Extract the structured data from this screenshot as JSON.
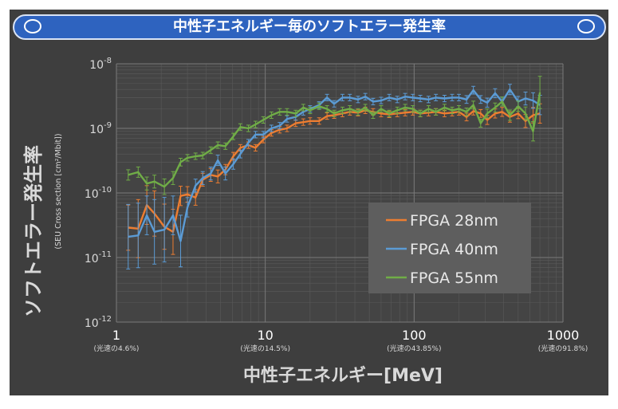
{
  "slide": {
    "banner_title": "中性子エネルギー毎のソフトエラー発生率",
    "banner_color": "#2e63bf",
    "background_color": "#3e3e3e"
  },
  "chart_data": {
    "type": "line",
    "title": "",
    "ylabel_main": "ソフトエラー発生率",
    "ylabel_sub": "(SEU Cross section [cm²/Mbit])",
    "xlabel": "中性子エネルギー[MeV]",
    "x_scale": "log",
    "y_scale": "log",
    "xlim": [
      1,
      1000
    ],
    "ylim": [
      1e-12,
      1e-08
    ],
    "grid": true,
    "legend_position": "lower-right",
    "x_ticks": [
      {
        "value": 1,
        "label": "1",
        "note": "(光速の4.6%)"
      },
      {
        "value": 10,
        "label": "10",
        "note": "(光速の14.5%)"
      },
      {
        "value": 100,
        "label": "100",
        "note": "(光速の43.85%)"
      },
      {
        "value": 1000,
        "label": "1000",
        "note": "(光速の91.8%)"
      }
    ],
    "y_ticks": [
      {
        "value": 1e-08,
        "base": "10",
        "exp": "-8"
      },
      {
        "value": 1e-09,
        "base": "10",
        "exp": "-9"
      },
      {
        "value": 1e-10,
        "base": "10",
        "exp": "-10"
      },
      {
        "value": 1e-11,
        "base": "10",
        "exp": "-11"
      },
      {
        "value": 1e-12,
        "base": "10",
        "exp": "-12"
      }
    ],
    "series": [
      {
        "name": "FPGA 28nm",
        "color": "#ed7d31",
        "x": [
          1.2,
          1.4,
          1.6,
          1.8,
          2.1,
          2.4,
          2.7,
          3.0,
          3.4,
          3.8,
          4.3,
          4.8,
          5.4,
          6.1,
          6.8,
          7.7,
          8.6,
          9.7,
          11,
          12.5,
          14,
          16,
          18,
          20,
          23,
          26,
          29,
          33,
          37,
          42,
          47,
          53,
          60,
          68,
          77,
          87,
          98,
          110,
          125,
          140,
          160,
          180,
          200,
          225,
          250,
          280,
          310,
          350,
          390,
          440,
          500,
          560,
          630,
          700
        ],
        "y": [
          2.9e-11,
          2.8e-11,
          6.5e-11,
          4.8e-11,
          3e-11,
          2.5e-11,
          9e-11,
          9.5e-11,
          8.5e-11,
          1.6e-10,
          1.9e-10,
          1.8e-10,
          2.3e-10,
          3.7e-10,
          5e-10,
          5.5e-10,
          5e-10,
          6.7e-10,
          8.5e-10,
          9.5e-10,
          1e-09,
          1.2e-09,
          1.25e-09,
          1.3e-09,
          1.3e-09,
          1.55e-09,
          1.6e-09,
          1.7e-09,
          1.8e-09,
          1.75e-09,
          1.9e-09,
          1.8e-09,
          1.7e-09,
          1.65e-09,
          1.7e-09,
          1.75e-09,
          1.8e-09,
          1.7e-09,
          1.75e-09,
          1.8e-09,
          1.7e-09,
          1.75e-09,
          1.8e-09,
          1.5e-09,
          1.85e-09,
          1.7e-09,
          1.35e-09,
          1.7e-09,
          1.8e-09,
          1.5e-09,
          1.7e-09,
          1.3e-09,
          1.6e-09,
          1.7e-09
        ],
        "err": [
          0.35,
          0.45,
          0.3,
          0.35,
          0.35,
          0.35,
          0.15,
          0.12,
          0.12,
          0.1,
          0.1,
          0.1,
          0.08,
          0.06,
          0.05,
          0.05,
          0.05,
          0.05,
          0.05,
          0.05,
          0.05,
          0.05,
          0.05,
          0.05,
          0.05,
          0.05,
          0.05,
          0.05,
          0.05,
          0.05,
          0.05,
          0.05,
          0.05,
          0.05,
          0.05,
          0.05,
          0.05,
          0.05,
          0.05,
          0.05,
          0.05,
          0.05,
          0.05,
          0.06,
          0.06,
          0.06,
          0.07,
          0.07,
          0.07,
          0.08,
          0.08,
          0.1,
          0.12,
          0.15
        ]
      },
      {
        "name": "FPGA 40nm",
        "color": "#5b9bd5",
        "x": [
          1.2,
          1.4,
          1.6,
          1.8,
          2.1,
          2.4,
          2.7,
          3.0,
          3.4,
          3.8,
          4.3,
          4.8,
          5.4,
          6.1,
          6.8,
          7.7,
          8.6,
          9.7,
          11,
          12.5,
          14,
          16,
          18,
          20,
          23,
          26,
          29,
          33,
          37,
          42,
          47,
          53,
          60,
          68,
          77,
          87,
          98,
          110,
          125,
          140,
          160,
          180,
          200,
          225,
          250,
          280,
          310,
          350,
          390,
          440,
          500,
          560,
          630,
          700
        ],
        "y": [
          2.1e-11,
          2.2e-11,
          4.5e-11,
          2.5e-11,
          2.7e-11,
          4.5e-11,
          1.8e-11,
          6e-11,
          1.3e-10,
          1.7e-10,
          2e-10,
          3.2e-10,
          2e-10,
          2.8e-10,
          4e-10,
          6e-10,
          8e-10,
          8e-10,
          1e-09,
          1.1e-09,
          1.4e-09,
          1.5e-09,
          1.8e-09,
          2e-09,
          2.3e-09,
          3e-09,
          2.4e-09,
          3e-09,
          3e-09,
          2.8e-09,
          3.1e-09,
          2.6e-09,
          2.7e-09,
          3e-09,
          2.8e-09,
          3.1e-09,
          3e-09,
          2.9e-09,
          2.8e-09,
          3e-09,
          2.9e-09,
          3e-09,
          3e-09,
          2.8e-09,
          3.9e-09,
          2.8e-09,
          2.5e-09,
          3.5e-09,
          2.6e-09,
          4e-09,
          2.6e-09,
          2.9e-09,
          2.7e-09,
          2.3e-09
        ],
        "err": [
          0.5,
          0.5,
          0.3,
          0.5,
          0.5,
          0.3,
          0.4,
          0.15,
          0.1,
          0.1,
          0.1,
          0.08,
          0.1,
          0.08,
          0.06,
          0.05,
          0.05,
          0.05,
          0.05,
          0.05,
          0.05,
          0.05,
          0.05,
          0.05,
          0.05,
          0.05,
          0.05,
          0.05,
          0.05,
          0.05,
          0.05,
          0.05,
          0.05,
          0.05,
          0.05,
          0.05,
          0.05,
          0.05,
          0.05,
          0.05,
          0.05,
          0.05,
          0.05,
          0.06,
          0.06,
          0.06,
          0.07,
          0.07,
          0.07,
          0.08,
          0.08,
          0.1,
          0.12,
          0.15
        ]
      },
      {
        "name": "FPGA 55nm",
        "color": "#70ad47",
        "x": [
          1.2,
          1.4,
          1.6,
          1.8,
          2.1,
          2.4,
          2.7,
          3.0,
          3.4,
          3.8,
          4.3,
          4.8,
          5.4,
          6.1,
          6.8,
          7.7,
          8.6,
          9.7,
          11,
          12.5,
          14,
          16,
          18,
          20,
          23,
          26,
          29,
          33,
          37,
          42,
          47,
          53,
          60,
          68,
          77,
          87,
          98,
          110,
          125,
          140,
          160,
          180,
          200,
          225,
          250,
          280,
          310,
          350,
          390,
          440,
          500,
          560,
          630,
          700
        ],
        "y": [
          1.9e-10,
          2.1e-10,
          1.4e-10,
          1.5e-10,
          1.25e-10,
          1.7e-10,
          3e-10,
          3.5e-10,
          3.7e-10,
          3.8e-10,
          4.6e-10,
          5.5e-10,
          5.3e-10,
          7.5e-10,
          1.05e-09,
          1e-09,
          1.15e-09,
          1.35e-09,
          1.6e-09,
          1.8e-09,
          1.8e-09,
          1.7e-09,
          2.1e-09,
          1.9e-09,
          2.2e-09,
          2e-09,
          1.7e-09,
          1.9e-09,
          2e-09,
          1.8e-09,
          2.1e-09,
          1.6e-09,
          2e-09,
          1.7e-09,
          1.9e-09,
          2.1e-09,
          2e-09,
          1.7e-09,
          2e-09,
          1.8e-09,
          2.1e-09,
          1.9e-09,
          2e-09,
          1.8e-09,
          2.3e-09,
          1.2e-09,
          1.7e-09,
          2.1e-09,
          2.6e-09,
          1.6e-09,
          2.2e-09,
          1.7e-09,
          9e-10,
          3.6e-09
        ],
        "err": [
          0.08,
          0.08,
          0.1,
          0.1,
          0.12,
          0.1,
          0.06,
          0.05,
          0.05,
          0.05,
          0.05,
          0.05,
          0.05,
          0.05,
          0.05,
          0.05,
          0.05,
          0.05,
          0.05,
          0.05,
          0.05,
          0.05,
          0.05,
          0.05,
          0.05,
          0.05,
          0.05,
          0.05,
          0.05,
          0.05,
          0.05,
          0.05,
          0.05,
          0.05,
          0.05,
          0.05,
          0.05,
          0.05,
          0.05,
          0.05,
          0.05,
          0.05,
          0.05,
          0.06,
          0.06,
          0.06,
          0.07,
          0.07,
          0.07,
          0.08,
          0.08,
          0.1,
          0.15,
          0.25
        ]
      }
    ]
  }
}
